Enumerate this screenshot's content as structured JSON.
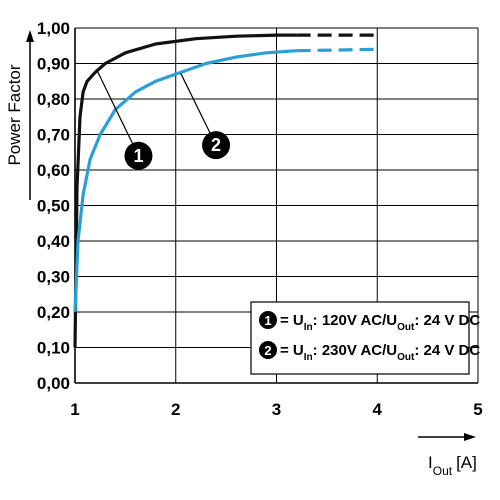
{
  "chart_data": {
    "type": "line",
    "ylabel": "Power Factor",
    "xlabel": "I",
    "xlabel_sub": "Out",
    "xlabel_unit": "[A]",
    "xlim": [
      1,
      5
    ],
    "ylim": [
      0,
      1
    ],
    "x_ticks": [
      "1",
      "2",
      "3",
      "4",
      "5"
    ],
    "y_ticks": [
      "0,00",
      "0,10",
      "0,20",
      "0,30",
      "0,40",
      "0,50",
      "0,60",
      "0,70",
      "0,80",
      "0,90",
      "1,00"
    ],
    "grid": true,
    "colors": {
      "series1": "#111111",
      "series2": "#2a9fd6"
    },
    "series": [
      {
        "marker": "1",
        "color": "#111111",
        "solid": [
          [
            1.0,
            0.1
          ],
          [
            1.02,
            0.55
          ],
          [
            1.05,
            0.75
          ],
          [
            1.08,
            0.82
          ],
          [
            1.12,
            0.85
          ],
          [
            1.2,
            0.875
          ],
          [
            1.3,
            0.9
          ],
          [
            1.5,
            0.93
          ],
          [
            1.8,
            0.955
          ],
          [
            2.2,
            0.97
          ],
          [
            2.6,
            0.977
          ],
          [
            3.0,
            0.98
          ],
          [
            3.2,
            0.98
          ]
        ],
        "dashed": [
          [
            3.2,
            0.98
          ],
          [
            4.0,
            0.98
          ]
        ],
        "legend": {
          "part1": "= U",
          "sub1": "In",
          "part2": ": 120V AC/U",
          "sub2": "Out",
          "part3": ": 24 V DC"
        }
      },
      {
        "marker": "2",
        "color": "#2a9fd6",
        "solid": [
          [
            1.0,
            0.2
          ],
          [
            1.03,
            0.4
          ],
          [
            1.08,
            0.53
          ],
          [
            1.15,
            0.63
          ],
          [
            1.25,
            0.7
          ],
          [
            1.4,
            0.77
          ],
          [
            1.6,
            0.82
          ],
          [
            1.8,
            0.85
          ],
          [
            2.0,
            0.87
          ],
          [
            2.3,
            0.9
          ],
          [
            2.6,
            0.918
          ],
          [
            2.9,
            0.93
          ],
          [
            3.2,
            0.936
          ]
        ],
        "dashed": [
          [
            3.2,
            0.936
          ],
          [
            4.0,
            0.94
          ]
        ],
        "legend": {
          "part1": "= U",
          "sub1": "In",
          "part2": ": 230V AC/U",
          "sub2": "Out",
          "part3": ": 24 V DC"
        }
      }
    ],
    "legend_position": "bottom-right"
  }
}
